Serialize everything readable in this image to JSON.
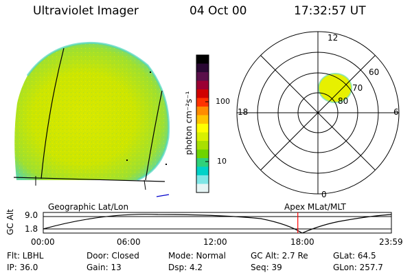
{
  "header": {
    "instrument": "Ultraviolet Imager",
    "date": "04 Oct 00",
    "time": "17:32:57 UT"
  },
  "colorbar": {
    "label": "photon cm⁻²s⁻¹",
    "ticks": [
      "100",
      "10"
    ],
    "colors": [
      "#000000",
      "#2a0833",
      "#5a0f4a",
      "#9b0033",
      "#d10000",
      "#ff3300",
      "#ff8c00",
      "#ffc400",
      "#ffff00",
      "#d8f000",
      "#a9e000",
      "#6ed400",
      "#2fd27a",
      "#00d2c8",
      "#7fe6e6",
      "#e6f5f5"
    ]
  },
  "polar": {
    "clock_labels": {
      "top": "12",
      "left": "18",
      "right": "6",
      "bottom": "0"
    },
    "lat_labels": [
      "60",
      "70",
      "80"
    ],
    "blob_color": "#e7f000"
  },
  "timeline": {
    "left_title": "Geographic Lat/Lon",
    "right_title": "Apex  MLat/MLT",
    "y_axis_label": "GC Alt",
    "y_ticks": [
      "9.0",
      "1.8"
    ],
    "x_ticks": [
      "00:00",
      "06:00",
      "12:00",
      "18:00",
      "23:59"
    ],
    "current_time_fraction": 0.7312,
    "marker_color": "#ff0000"
  },
  "info": {
    "filter": "Flt: LBHL",
    "ip": "IP: 36.0",
    "door": "Door: Closed",
    "gain": "Gain: 13",
    "mode": "Mode: Normal",
    "dsp": "Dsp:    4.2",
    "gc_alt": "GC Alt: 2.7 Re",
    "seq": "Seq: 39",
    "glat": "GLat:   64.5",
    "glon": "GLon: 257.7"
  }
}
